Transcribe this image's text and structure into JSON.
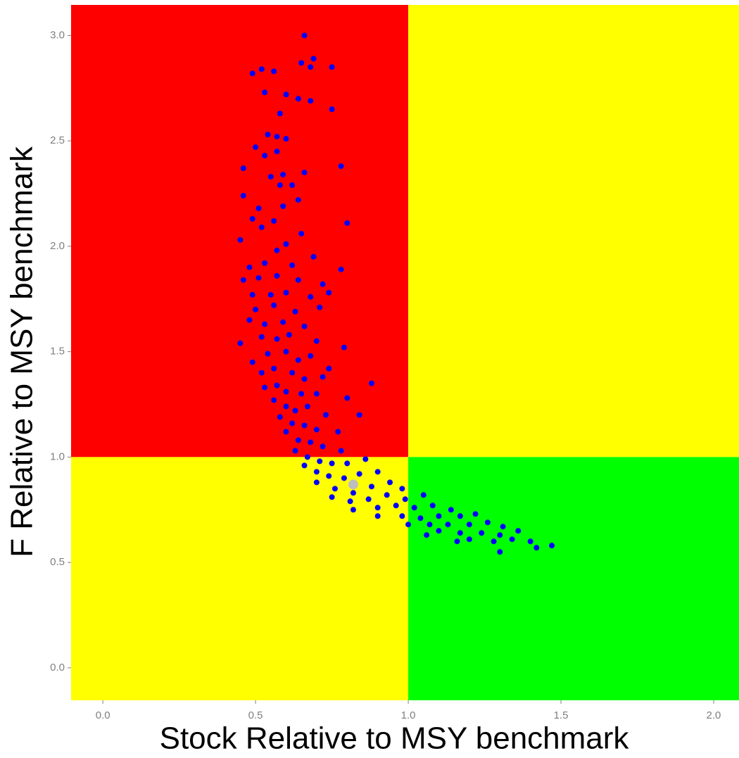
{
  "chart_data": {
    "type": "scatter",
    "xlabel": "Stock Relative to MSY benchmark",
    "ylabel": "F Relative to MSY benchmark",
    "xlim": [
      -0.104,
      2.083
    ],
    "ylim": [
      -0.154,
      3.145
    ],
    "xticks": [
      {
        "value": 0,
        "label": "0.0"
      },
      0.5,
      {
        "value": 1,
        "label": "1.0"
      },
      1.5,
      {
        "value": 2,
        "label": "2.0"
      }
    ],
    "yticks": [
      {
        "value": 0,
        "label": "0.0"
      },
      0.5,
      {
        "value": 1,
        "label": "1.0"
      },
      1.5,
      {
        "value": 2,
        "label": "2.0"
      },
      2.5,
      {
        "value": 3,
        "label": "3.0"
      }
    ],
    "grid": false,
    "reference_x": 1,
    "reference_y": 1,
    "quadrant_colors": {
      "low_x_high_y": "#ff0000",
      "high_x_high_y": "#ffff00",
      "low_x_low_y": "#ffff00",
      "high_x_low_y": "#00ff00"
    },
    "series": [
      {
        "color": "#0000ff",
        "x": [
          0.66,
          0.69,
          0.65,
          0.49,
          0.52,
          0.56,
          0.75,
          0.68,
          0.53,
          0.6,
          0.64,
          0.68,
          0.58,
          0.75,
          0.54,
          0.57,
          0.6,
          0.5,
          0.57,
          0.53,
          0.46,
          0.78,
          0.55,
          0.59,
          0.66,
          0.62,
          0.58,
          0.64,
          0.46,
          0.51,
          0.59,
          0.49,
          0.56,
          0.8,
          0.52,
          0.65,
          0.45,
          0.6,
          0.57,
          0.69,
          0.48,
          0.53,
          0.62,
          0.78,
          0.46,
          0.51,
          0.57,
          0.64,
          0.72,
          0.49,
          0.55,
          0.6,
          0.68,
          0.74,
          0.5,
          0.56,
          0.63,
          0.71,
          0.48,
          0.53,
          0.59,
          0.66,
          0.45,
          0.52,
          0.57,
          0.61,
          0.7,
          0.79,
          0.49,
          0.54,
          0.6,
          0.64,
          0.68,
          0.74,
          0.52,
          0.56,
          0.62,
          0.66,
          0.72,
          0.88,
          0.53,
          0.57,
          0.6,
          0.65,
          0.7,
          0.8,
          0.56,
          0.6,
          0.63,
          0.67,
          0.73,
          0.84,
          0.58,
          0.62,
          0.66,
          0.7,
          0.77,
          0.6,
          0.64,
          0.68,
          0.72,
          0.78,
          0.63,
          0.67,
          0.71,
          0.75,
          0.8,
          0.86,
          0.66,
          0.7,
          0.74,
          0.79,
          0.84,
          0.9,
          0.7,
          0.76,
          0.82,
          0.88,
          0.94,
          0.98,
          0.75,
          0.81,
          0.87,
          0.93,
          0.99,
          1.05,
          0.82,
          0.9,
          0.96,
          1.02,
          1.08,
          1.14,
          0.9,
          0.98,
          1.04,
          1.1,
          1.17,
          1.22,
          1.0,
          1.07,
          1.13,
          1.2,
          1.26,
          1.31,
          1.1,
          1.17,
          1.24,
          1.3,
          1.36,
          1.2,
          1.28,
          1.34,
          1.4,
          1.47,
          1.3,
          1.42,
          1.16,
          1.06
        ],
        "y": [
          3.0,
          2.89,
          2.87,
          2.82,
          2.84,
          2.83,
          2.85,
          2.85,
          2.73,
          2.72,
          2.7,
          2.69,
          2.63,
          2.65,
          2.53,
          2.52,
          2.51,
          2.47,
          2.45,
          2.43,
          2.37,
          2.38,
          2.33,
          2.34,
          2.35,
          2.29,
          2.29,
          2.22,
          2.24,
          2.18,
          2.19,
          2.13,
          2.12,
          2.11,
          2.09,
          2.06,
          2.03,
          2.01,
          1.98,
          1.95,
          1.9,
          1.92,
          1.91,
          1.89,
          1.84,
          1.85,
          1.86,
          1.84,
          1.82,
          1.77,
          1.77,
          1.78,
          1.76,
          1.78,
          1.7,
          1.72,
          1.69,
          1.71,
          1.65,
          1.63,
          1.64,
          1.62,
          1.54,
          1.57,
          1.56,
          1.58,
          1.55,
          1.52,
          1.45,
          1.49,
          1.5,
          1.46,
          1.48,
          1.42,
          1.4,
          1.42,
          1.4,
          1.37,
          1.38,
          1.35,
          1.33,
          1.34,
          1.31,
          1.3,
          1.3,
          1.28,
          1.27,
          1.24,
          1.22,
          1.24,
          1.2,
          1.2,
          1.19,
          1.16,
          1.15,
          1.13,
          1.12,
          1.12,
          1.08,
          1.07,
          1.05,
          1.03,
          1.03,
          1.0,
          0.98,
          0.97,
          0.97,
          0.99,
          0.96,
          0.93,
          0.91,
          0.9,
          0.92,
          0.93,
          0.88,
          0.85,
          0.83,
          0.86,
          0.88,
          0.85,
          0.81,
          0.79,
          0.8,
          0.82,
          0.8,
          0.82,
          0.75,
          0.76,
          0.77,
          0.76,
          0.77,
          0.75,
          0.72,
          0.72,
          0.71,
          0.72,
          0.72,
          0.73,
          0.68,
          0.68,
          0.68,
          0.68,
          0.69,
          0.67,
          0.65,
          0.64,
          0.64,
          0.63,
          0.65,
          0.61,
          0.6,
          0.61,
          0.6,
          0.58,
          0.55,
          0.57,
          0.6,
          0.63
        ]
      },
      {
        "color": "#bebebe",
        "x": [
          0.82
        ],
        "y": [
          0.87
        ]
      }
    ]
  }
}
